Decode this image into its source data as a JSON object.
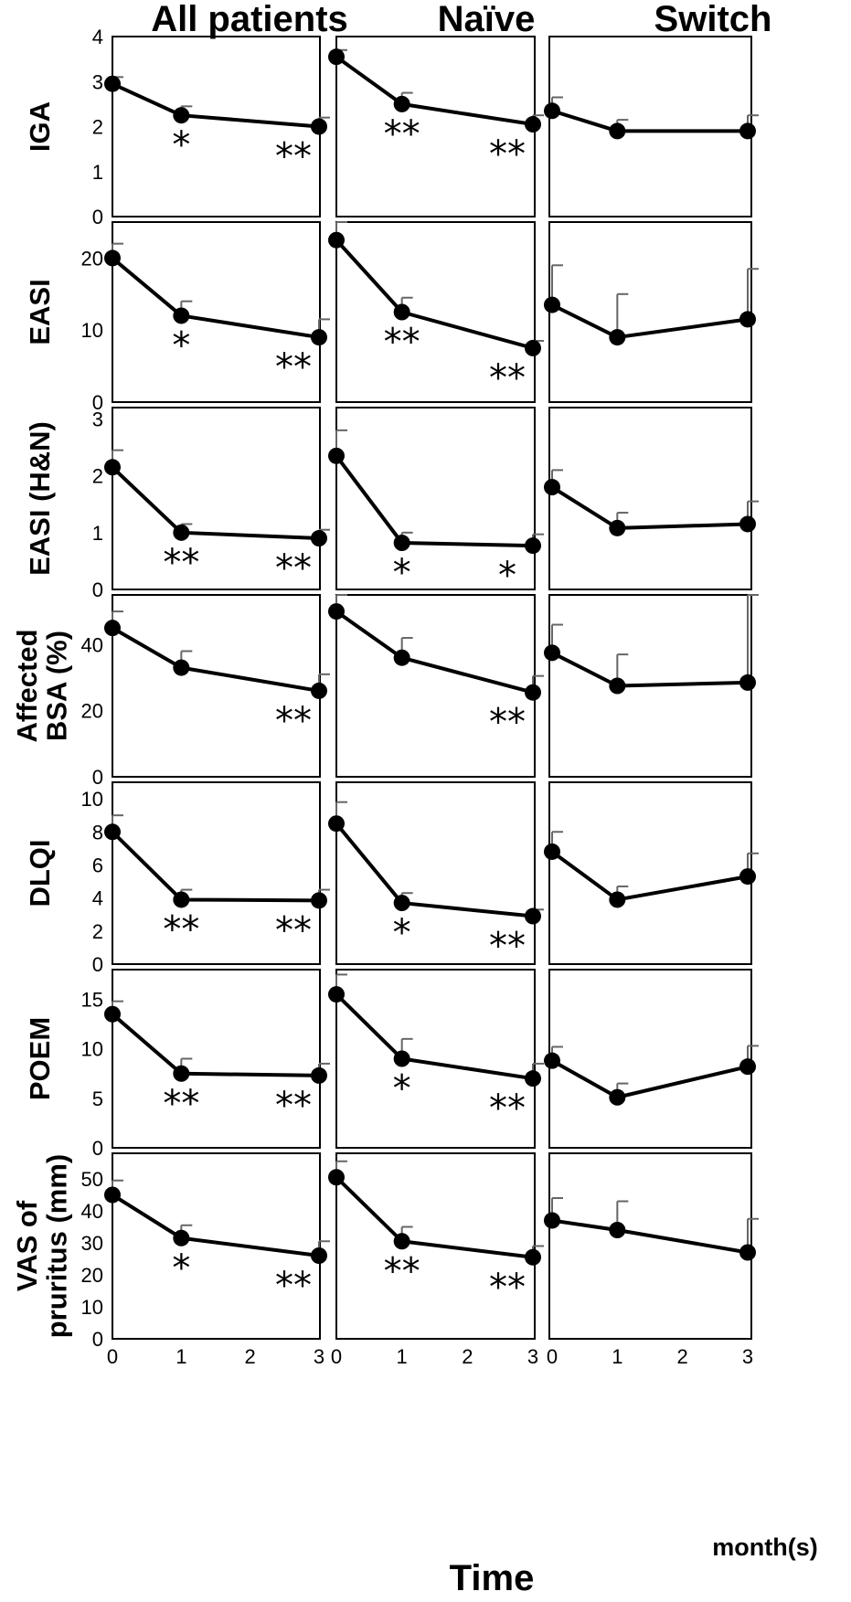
{
  "figure": {
    "columns": [
      "All patients",
      "Naïve",
      "Switch"
    ],
    "x_axis_title": "Time",
    "x_unit_label": "month(s)",
    "x_ticks": [
      "0",
      "1",
      "2",
      "3"
    ]
  },
  "chart_data": [
    {
      "type": "line",
      "row_label": [
        "IGA"
      ],
      "column": "All patients",
      "x": [
        0,
        1,
        3
      ],
      "y": [
        2.95,
        2.25,
        2.0
      ],
      "error_upper": [
        3.1,
        2.45,
        2.2
      ],
      "ylim": [
        0,
        4
      ],
      "yticks": [
        "0",
        "1",
        "2",
        "3",
        "4"
      ],
      "significance": [
        "",
        "*",
        "**"
      ]
    },
    {
      "type": "line",
      "row_label": [
        "IGA"
      ],
      "column": "Naïve",
      "x": [
        0,
        1,
        3
      ],
      "y": [
        3.55,
        2.5,
        2.05
      ],
      "error_upper": [
        3.7,
        2.75,
        2.25
      ],
      "ylim": [
        0,
        4
      ],
      "yticks": [],
      "significance": [
        "",
        "**",
        "**"
      ]
    },
    {
      "type": "line",
      "row_label": [
        "IGA"
      ],
      "column": "Switch",
      "x": [
        0,
        1,
        3
      ],
      "y": [
        2.35,
        1.9,
        1.9
      ],
      "error_upper": [
        2.65,
        2.15,
        2.25
      ],
      "ylim": [
        0,
        4
      ],
      "yticks": [],
      "significance": [
        "",
        "",
        ""
      ]
    },
    {
      "type": "line",
      "row_label": [
        "EASI"
      ],
      "column": "All patients",
      "x": [
        0,
        1,
        3
      ],
      "y": [
        20.0,
        12.0,
        9.0
      ],
      "error_upper": [
        22.0,
        14.0,
        11.5
      ],
      "ylim": [
        0,
        25
      ],
      "yticks": [
        "0",
        "10",
        "20"
      ],
      "significance": [
        "",
        "*",
        "**"
      ]
    },
    {
      "type": "line",
      "row_label": [
        "EASI"
      ],
      "column": "Naïve",
      "x": [
        0,
        1,
        3
      ],
      "y": [
        22.5,
        12.5,
        7.5
      ],
      "error_upper": [
        25.0,
        14.5,
        8.5
      ],
      "ylim": [
        0,
        25
      ],
      "yticks": [],
      "significance": [
        "",
        "**",
        "**"
      ]
    },
    {
      "type": "line",
      "row_label": [
        "EASI"
      ],
      "column": "Switch",
      "x": [
        0,
        1,
        3
      ],
      "y": [
        13.5,
        9.0,
        11.5
      ],
      "error_upper": [
        19.0,
        15.0,
        18.5
      ],
      "ylim": [
        0,
        25
      ],
      "yticks": [],
      "significance": [
        "",
        "",
        ""
      ]
    },
    {
      "type": "line",
      "row_label": [
        "EASI (H&N)"
      ],
      "column": "All patients",
      "x": [
        0,
        1,
        3
      ],
      "y": [
        2.15,
        1.0,
        0.9
      ],
      "error_upper": [
        2.45,
        1.15,
        1.05
      ],
      "ylim": [
        0,
        3.2
      ],
      "yticks": [
        "0",
        "1",
        "2",
        "3"
      ],
      "significance": [
        "",
        "**",
        "**"
      ]
    },
    {
      "type": "line",
      "row_label": [
        "EASI (H&N)"
      ],
      "column": "Naïve",
      "x": [
        0,
        1,
        3
      ],
      "y": [
        2.35,
        0.82,
        0.77
      ],
      "error_upper": [
        2.8,
        1.0,
        0.97
      ],
      "ylim": [
        0,
        3.2
      ],
      "yticks": [],
      "significance": [
        "",
        "*",
        "*"
      ]
    },
    {
      "type": "line",
      "row_label": [
        "EASI (H&N)"
      ],
      "column": "Switch",
      "x": [
        0,
        1,
        3
      ],
      "y": [
        1.8,
        1.08,
        1.15
      ],
      "error_upper": [
        2.1,
        1.35,
        1.55
      ],
      "ylim": [
        0,
        3.2
      ],
      "yticks": [],
      "significance": [
        "",
        "",
        ""
      ]
    },
    {
      "type": "line",
      "row_label": [
        "Affected",
        "BSA (%)"
      ],
      "column": "All patients",
      "x": [
        0,
        1,
        3
      ],
      "y": [
        45.0,
        33.0,
        26.0
      ],
      "error_upper": [
        50.0,
        38.0,
        31.0
      ],
      "ylim": [
        0,
        55
      ],
      "yticks": [
        "0",
        "20",
        "40"
      ],
      "significance": [
        "",
        "",
        "**"
      ]
    },
    {
      "type": "line",
      "row_label": [
        "Affected",
        "BSA (%)"
      ],
      "column": "Naïve",
      "x": [
        0,
        1,
        3
      ],
      "y": [
        50.0,
        36.0,
        25.5
      ],
      "error_upper": [
        55.0,
        42.0,
        30.5
      ],
      "ylim": [
        0,
        55
      ],
      "yticks": [],
      "significance": [
        "",
        "",
        "**"
      ]
    },
    {
      "type": "line",
      "row_label": [
        "Affected",
        "BSA (%)"
      ],
      "column": "Switch",
      "x": [
        0,
        1,
        3
      ],
      "y": [
        37.5,
        27.5,
        28.5
      ],
      "error_upper": [
        46.0,
        37.0,
        55.0
      ],
      "ylim": [
        0,
        55
      ],
      "yticks": [],
      "significance": [
        "",
        "",
        ""
      ]
    },
    {
      "type": "line",
      "row_label": [
        "DLQI"
      ],
      "column": "All patients",
      "x": [
        0,
        1,
        3
      ],
      "y": [
        8.0,
        3.9,
        3.85
      ],
      "error_upper": [
        9.0,
        4.5,
        4.5
      ],
      "ylim": [
        0,
        11
      ],
      "yticks": [
        "0",
        "2",
        "4",
        "6",
        "8",
        "10"
      ],
      "significance": [
        "",
        "**",
        "**"
      ]
    },
    {
      "type": "line",
      "row_label": [
        "DLQI"
      ],
      "column": "Naïve",
      "x": [
        0,
        1,
        3
      ],
      "y": [
        8.5,
        3.7,
        2.9
      ],
      "error_upper": [
        9.8,
        4.3,
        3.3
      ],
      "ylim": [
        0,
        11
      ],
      "yticks": [],
      "significance": [
        "",
        "*",
        "**"
      ]
    },
    {
      "type": "line",
      "row_label": [
        "DLQI"
      ],
      "column": "Switch",
      "x": [
        0,
        1,
        3
      ],
      "y": [
        6.8,
        3.9,
        5.3
      ],
      "error_upper": [
        8.0,
        4.7,
        6.7
      ],
      "ylim": [
        0,
        11
      ],
      "yticks": [],
      "significance": [
        "",
        "",
        ""
      ]
    },
    {
      "type": "line",
      "row_label": [
        "POEM"
      ],
      "column": "All patients",
      "x": [
        0,
        1,
        3
      ],
      "y": [
        13.5,
        7.5,
        7.3
      ],
      "error_upper": [
        14.8,
        9.0,
        8.5
      ],
      "ylim": [
        0,
        18
      ],
      "yticks": [
        "0",
        "5",
        "10",
        "15"
      ],
      "significance": [
        "",
        "**",
        "**"
      ]
    },
    {
      "type": "line",
      "row_label": [
        "POEM"
      ],
      "column": "Naïve",
      "x": [
        0,
        1,
        3
      ],
      "y": [
        15.5,
        9.0,
        7.0
      ],
      "error_upper": [
        17.5,
        11.0,
        8.5
      ],
      "ylim": [
        0,
        18
      ],
      "yticks": [],
      "significance": [
        "",
        "*",
        "**"
      ]
    },
    {
      "type": "line",
      "row_label": [
        "POEM"
      ],
      "column": "Switch",
      "x": [
        0,
        1,
        3
      ],
      "y": [
        8.8,
        5.1,
        8.2
      ],
      "error_upper": [
        10.2,
        6.5,
        10.3
      ],
      "ylim": [
        0,
        18
      ],
      "yticks": [],
      "significance": [
        "",
        "",
        ""
      ]
    },
    {
      "type": "line",
      "row_label": [
        "VAS of",
        "pruritus (mm)"
      ],
      "column": "All patients",
      "x": [
        0,
        1,
        3
      ],
      "y": [
        45.0,
        31.5,
        26.0
      ],
      "error_upper": [
        49.5,
        35.5,
        30.5
      ],
      "ylim": [
        0,
        58
      ],
      "yticks": [
        "0",
        "10",
        "20",
        "30",
        "40",
        "50"
      ],
      "significance": [
        "",
        "*",
        "**"
      ]
    },
    {
      "type": "line",
      "row_label": [
        "VAS of",
        "pruritus (mm)"
      ],
      "column": "Naïve",
      "x": [
        0,
        1,
        3
      ],
      "y": [
        50.5,
        30.5,
        25.5
      ],
      "error_upper": [
        55.5,
        35.0,
        29.0
      ],
      "ylim": [
        0,
        58
      ],
      "yticks": [],
      "significance": [
        "",
        "**",
        "**"
      ]
    },
    {
      "type": "line",
      "row_label": [
        "VAS of",
        "pruritus (mm)"
      ],
      "column": "Switch",
      "x": [
        0,
        1,
        3
      ],
      "y": [
        37.0,
        34.0,
        27.0
      ],
      "error_upper": [
        44.0,
        43.0,
        37.5
      ],
      "ylim": [
        0,
        58
      ],
      "yticks": [],
      "significance": [
        "",
        "",
        ""
      ]
    }
  ]
}
